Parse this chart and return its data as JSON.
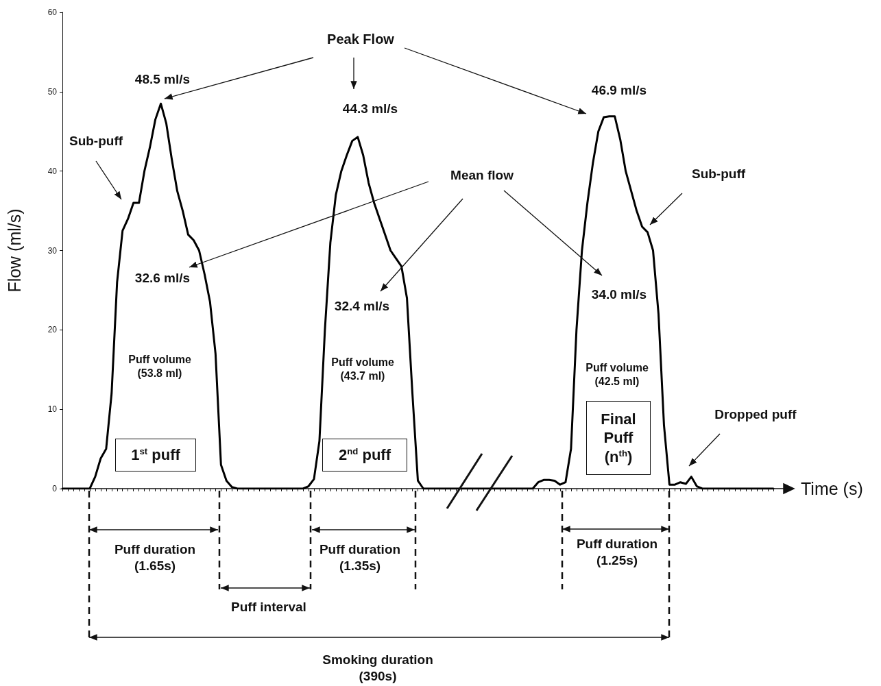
{
  "chart_data": {
    "type": "line",
    "xlabel": "Time (s)",
    "ylabel": "Flow (ml/s)",
    "categories": [
      null,
      null,
      null,
      null,
      null,
      null,
      null,
      null,
      null,
      null,
      null,
      null,
      null,
      null,
      null,
      null,
      null,
      null,
      null,
      null,
      null,
      null,
      null,
      null,
      null,
      null,
      null,
      null,
      null,
      null,
      null,
      null,
      null,
      null,
      null,
      null,
      null,
      null,
      null,
      null,
      null,
      null,
      null,
      null,
      null,
      null,
      null,
      null,
      null,
      null,
      null,
      null,
      null,
      null,
      null,
      null,
      null,
      null,
      null,
      null,
      null,
      null,
      null,
      null,
      null,
      null,
      null,
      null,
      null,
      null,
      null,
      null,
      null,
      null,
      null,
      null,
      null,
      null,
      null,
      null,
      null,
      null,
      null,
      null,
      null,
      null,
      null,
      null,
      null,
      null,
      null,
      null,
      null,
      null,
      null,
      null,
      null,
      null,
      null,
      null,
      null,
      null,
      null,
      null,
      null,
      null,
      null,
      null,
      null,
      null,
      null,
      null,
      null,
      null,
      null,
      null,
      null,
      null,
      null,
      null,
      null,
      null,
      null,
      null,
      null,
      null,
      null,
      null,
      null,
      null,
      null
    ],
    "values": [
      0,
      0,
      0,
      0,
      0,
      0,
      1.5,
      3.8,
      5,
      12,
      26,
      32.5,
      34,
      36,
      36,
      40,
      43,
      46.5,
      48.5,
      46,
      41.5,
      37.5,
      35,
      32,
      31.3,
      30,
      27,
      23.5,
      17,
      3,
      1,
      0.2,
      0,
      0,
      0,
      0,
      0,
      0,
      0,
      0,
      0,
      0,
      0,
      0,
      0,
      0.3,
      1.2,
      6,
      20,
      31,
      37,
      40,
      42,
      43.8,
      44.3,
      42,
      38.5,
      36,
      34,
      32,
      30,
      29,
      28,
      24,
      12,
      1,
      0,
      0,
      0,
      0,
      0,
      0,
      0,
      0,
      0,
      0,
      0,
      0,
      0,
      0,
      0,
      0,
      0,
      0,
      0,
      0,
      0,
      0.8,
      1.1,
      1.1,
      1,
      0.5,
      0.8,
      5,
      20,
      30,
      36,
      41,
      45,
      46.8,
      46.9,
      46.9,
      44,
      40,
      37.5,
      35,
      33,
      32.3,
      30,
      22,
      8,
      0.5,
      0.5,
      0.8,
      0.6,
      1.5,
      0.3,
      0,
      0,
      0,
      0,
      0,
      0,
      0,
      0,
      0,
      0,
      0,
      0,
      0,
      0
    ],
    "color": "#000000",
    "ylim": [
      0,
      60
    ],
    "yticks": [
      0,
      10,
      20,
      30,
      40,
      50,
      60
    ],
    "tick_labels": "y",
    "line_style": "solid",
    "annotations": [
      "Peak Flow",
      "48.5 ml/s",
      "44.3 ml/s",
      "46.9 ml/s",
      "Sub-puff",
      "Sub-puff",
      "Mean flow",
      "32.6 ml/s",
      "32.4 ml/s",
      "34.0 ml/s",
      "Puff volume\n(53.8 ml)",
      "Puff volume\n(43.7 ml)",
      "Puff volume\n(42.5 ml)",
      "1$^{st}$ puff",
      "2$^{nd}$ puff",
      "Final\nPuff\n(n$^{th}$)",
      "Dropped puff",
      "Puff duration\n(1.65s)",
      "Puff duration\n(1.35s)",
      "Puff duration\n(1.25s)",
      "Puff interval",
      "Smoking duration\n(390s)"
    ]
  }
}
